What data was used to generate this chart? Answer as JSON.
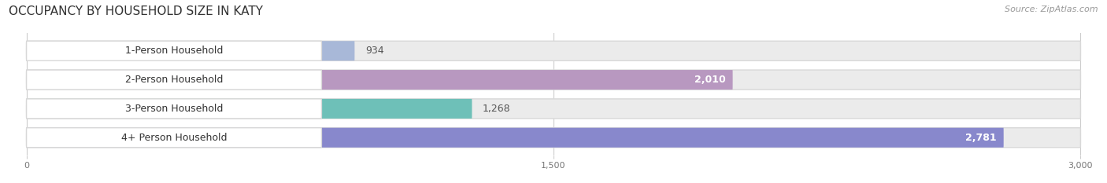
{
  "title": "OCCUPANCY BY HOUSEHOLD SIZE IN KATY",
  "source": "Source: ZipAtlas.com",
  "categories": [
    "1-Person Household",
    "2-Person Household",
    "3-Person Household",
    "4+ Person Household"
  ],
  "values": [
    934,
    2010,
    1268,
    2781
  ],
  "bar_colors": [
    "#a8b8d8",
    "#b898c0",
    "#6ec0b8",
    "#8888cc"
  ],
  "label_colors": [
    "#444444",
    "#ffffff",
    "#444444",
    "#ffffff"
  ],
  "value_inside": [
    false,
    true,
    false,
    true
  ],
  "xlim_data": [
    0,
    3000
  ],
  "xticks": [
    0,
    1500,
    3000
  ],
  "background_color": "#ffffff",
  "bar_bg_color": "#ebebeb",
  "title_fontsize": 11,
  "source_fontsize": 8,
  "label_fontsize": 9,
  "value_fontsize": 9
}
